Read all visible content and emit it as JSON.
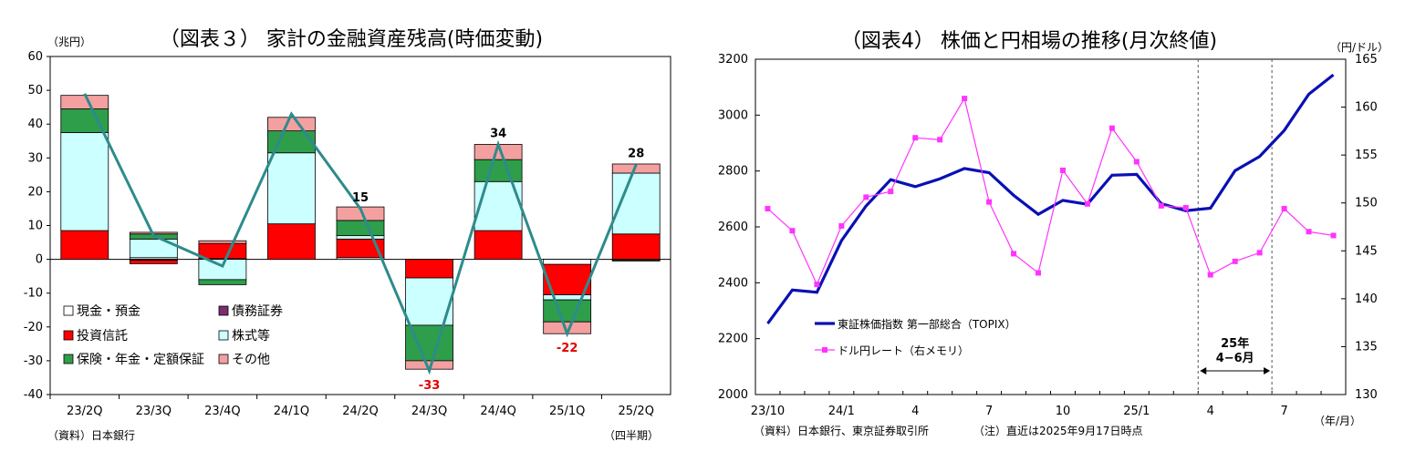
{
  "chart_data": [
    {
      "type": "bar",
      "title": "（図表３） 家計の金融資産残高(時価変動)",
      "unit_label": "（兆円）",
      "source": "（資料）日本銀行",
      "period_label": "（四半期）",
      "categories": [
        "23/2Q",
        "23/3Q",
        "23/4Q",
        "24/1Q",
        "24/2Q",
        "24/3Q",
        "24/4Q",
        "25/1Q",
        "25/2Q"
      ],
      "ylim": [
        -40,
        60
      ],
      "yticks": [
        60,
        50,
        40,
        30,
        20,
        10,
        0,
        -10,
        -20,
        -30,
        -40
      ],
      "grid": false,
      "legend": [
        {
          "name": "現金・預金",
          "color": "#ffffff"
        },
        {
          "name": "債務証券",
          "color": "#7b2d6e"
        },
        {
          "name": "投資信託",
          "color": "#ff0000"
        },
        {
          "name": "株式等",
          "color": "#ccffff"
        },
        {
          "name": "保険・年金・定額保証",
          "color": "#2e9e4a"
        },
        {
          "name": "その他",
          "color": "#f4a0a0"
        }
      ],
      "series": [
        {
          "name": "現金・預金",
          "color": "#ffffff",
          "values": [
            0,
            0.5,
            0.2,
            0,
            0.5,
            0,
            0,
            -1.5,
            0
          ]
        },
        {
          "name": "債務証券",
          "color": "#7b2d6e",
          "values": [
            0,
            -0.3,
            0,
            0,
            0,
            0,
            0,
            0,
            -0.2
          ]
        },
        {
          "name": "投資信託",
          "color": "#ff0000",
          "values": [
            8.5,
            -1,
            4.5,
            10.5,
            5.5,
            -5.5,
            8.5,
            -9,
            7.5
          ]
        },
        {
          "name": "株式等",
          "color": "#ccffff",
          "values": [
            29,
            5.5,
            -6,
            21,
            1,
            -14,
            14.5,
            -1.5,
            18
          ]
        },
        {
          "name": "保険・年金・定額保証",
          "color": "#2e9e4a",
          "values": [
            7,
            1.5,
            -1.5,
            6.5,
            4.5,
            -10.5,
            6.5,
            -6.5,
            -0.3
          ]
        },
        {
          "name": "その他",
          "color": "#f4a0a0",
          "values": [
            4,
            0.5,
            0.8,
            4,
            4,
            -2.5,
            4.5,
            -3.5,
            2.7
          ]
        }
      ],
      "total_line": {
        "color": "#2e8b8b",
        "values": [
          49,
          7,
          -2,
          43,
          15,
          -33,
          34,
          -22,
          28
        ]
      },
      "data_labels": [
        {
          "index": 4,
          "text": "15",
          "color": "#000000"
        },
        {
          "index": 5,
          "text": "-33",
          "color": "#e00000"
        },
        {
          "index": 6,
          "text": "34",
          "color": "#000000"
        },
        {
          "index": 7,
          "text": "-22",
          "color": "#e00000"
        },
        {
          "index": 8,
          "text": "28",
          "color": "#000000"
        }
      ]
    },
    {
      "type": "line",
      "title": "（図表4） 株価と円相場の推移(月次終値)",
      "right_unit_label": "（円/ドル）",
      "source": "（資料）日本銀行、東京証券取引所",
      "note": "（注）直近は2025年9月17日時点",
      "period_label": "（年/月）",
      "x_labels": [
        {
          "index": 0,
          "text": "23/10"
        },
        {
          "index": 3,
          "text": "24/1"
        },
        {
          "index": 6,
          "text": "4"
        },
        {
          "index": 9,
          "text": "7"
        },
        {
          "index": 12,
          "text": "10"
        },
        {
          "index": 15,
          "text": "25/1"
        },
        {
          "index": 18,
          "text": "4"
        },
        {
          "index": 21,
          "text": "7"
        }
      ],
      "n_points": 24,
      "ylim_left": [
        2000,
        3200
      ],
      "yticks_left": [
        2000,
        2200,
        2400,
        2600,
        2800,
        3000,
        3200
      ],
      "ylim_right": [
        130,
        165
      ],
      "yticks_right": [
        130,
        135,
        140,
        145,
        150,
        155,
        160,
        165
      ],
      "annotation": {
        "line1": "25年",
        "line2": "4−6月",
        "from_index": 17.5,
        "to_index": 20.5
      },
      "series": [
        {
          "name": "東証株価指数 第一部総合（TOPIX）",
          "axis": "left",
          "color": "#0a10b4",
          "values": [
            2254,
            2374,
            2366,
            2551,
            2675,
            2769,
            2744,
            2772,
            2809,
            2794,
            2713,
            2645,
            2695,
            2681,
            2785,
            2788,
            2683,
            2658,
            2667,
            2801,
            2852,
            2945,
            3075,
            3144
          ]
        },
        {
          "name": "ドル円レート（右メモリ）",
          "axis": "right",
          "color": "#ff33ff",
          "values": [
            149.4,
            147.1,
            141.5,
            147.6,
            150.6,
            151.2,
            156.8,
            156.6,
            160.9,
            150.1,
            144.7,
            142.7,
            153.4,
            149.9,
            157.8,
            154.3,
            149.7,
            149.5,
            142.5,
            143.9,
            144.8,
            149.4,
            147.0,
            146.6
          ]
        }
      ]
    }
  ]
}
